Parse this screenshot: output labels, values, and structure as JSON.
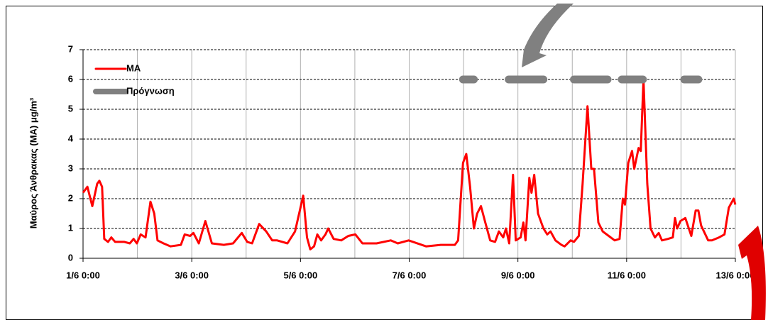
{
  "chart_data": {
    "type": "line",
    "ylabel": "Μαύρος Άνθρακας (ΜΑ) μg/m³",
    "xlim": [
      0,
      12
    ],
    "xticks": [
      {
        "value": 0,
        "label": "1/6 0:00"
      },
      {
        "value": 2,
        "label": "3/6 0:00"
      },
      {
        "value": 4,
        "label": "5/6 0:00"
      },
      {
        "value": 6,
        "label": "7/6 0:00"
      },
      {
        "value": 8,
        "label": "9/6 0:00"
      },
      {
        "value": 10,
        "label": "11/6 0:00"
      },
      {
        "value": 12,
        "label": "13/6 0:00"
      }
    ],
    "xgrid_minor": [
      1,
      3,
      5,
      7,
      9,
      11
    ],
    "ylim": [
      0,
      7
    ],
    "yticks": [
      0,
      1,
      2,
      3,
      4,
      5,
      6,
      7
    ],
    "grid": true,
    "legend": "upper left",
    "series": [
      {
        "name": "ΜΑ",
        "color": "#ff0000",
        "width": 3,
        "x": [
          0,
          0.08,
          0.17,
          0.26,
          0.3,
          0.35,
          0.39,
          0.46,
          0.52,
          0.59,
          0.76,
          0.86,
          0.93,
          0.99,
          1.06,
          1.15,
          1.24,
          1.31,
          1.37,
          1.48,
          1.61,
          1.8,
          1.87,
          1.97,
          2.03,
          2.13,
          2.25,
          2.37,
          2.59,
          2.76,
          2.92,
          3.02,
          3.11,
          3.24,
          3.37,
          3.48,
          3.57,
          3.76,
          3.9,
          4.05,
          4.12,
          4.18,
          4.25,
          4.31,
          4.38,
          4.46,
          4.51,
          4.61,
          4.75,
          4.88,
          5.01,
          5.14,
          5.4,
          5.66,
          5.79,
          5.99,
          6.31,
          6.58,
          6.84,
          6.9,
          6.99,
          7.05,
          7.12,
          7.19,
          7.25,
          7.32,
          7.4,
          7.49,
          7.58,
          7.65,
          7.73,
          7.78,
          7.84,
          7.91,
          7.96,
          8.05,
          8.1,
          8.14,
          8.21,
          8.25,
          8.3,
          8.37,
          8.47,
          8.54,
          8.6,
          8.69,
          8.8,
          8.86,
          8.97,
          9.03,
          9.12,
          9.19,
          9.28,
          9.35,
          9.4,
          9.48,
          9.56,
          9.67,
          9.78,
          9.87,
          9.93,
          9.97,
          10.03,
          10.1,
          10.14,
          10.22,
          10.26,
          10.31,
          10.38,
          10.44,
          10.52,
          10.59,
          10.65,
          10.76,
          10.85,
          10.89,
          10.93,
          10.99,
          11.08,
          11.19,
          11.27,
          11.32,
          11.37,
          11.5,
          11.57,
          11.7,
          11.8,
          11.88,
          11.97,
          12
        ],
        "values": [
          2.2,
          2.4,
          1.75,
          2.5,
          2.6,
          2.4,
          0.65,
          0.55,
          0.7,
          0.55,
          0.55,
          0.5,
          0.65,
          0.5,
          0.8,
          0.7,
          1.9,
          1.5,
          0.6,
          0.5,
          0.4,
          0.45,
          0.8,
          0.75,
          0.85,
          0.5,
          1.25,
          0.5,
          0.45,
          0.5,
          0.85,
          0.55,
          0.5,
          1.15,
          0.9,
          0.6,
          0.6,
          0.5,
          0.9,
          2.1,
          0.7,
          0.3,
          0.4,
          0.8,
          0.6,
          0.8,
          1.0,
          0.65,
          0.6,
          0.75,
          0.8,
          0.5,
          0.5,
          0.6,
          0.5,
          0.6,
          0.4,
          0.45,
          0.45,
          0.6,
          3.2,
          3.5,
          2.4,
          1.0,
          1.5,
          1.75,
          1.2,
          0.6,
          0.55,
          0.9,
          0.7,
          1.0,
          0.5,
          2.8,
          0.6,
          0.7,
          1.2,
          0.6,
          2.7,
          2.2,
          2.8,
          1.5,
          1.0,
          0.8,
          0.9,
          0.6,
          0.45,
          0.4,
          0.6,
          0.55,
          0.75,
          2.5,
          5.1,
          3.0,
          3.0,
          1.2,
          0.9,
          0.75,
          0.6,
          0.65,
          2.0,
          1.8,
          3.2,
          3.6,
          3.0,
          3.7,
          3.6,
          6.0,
          2.5,
          1.0,
          0.7,
          0.85,
          0.6,
          0.65,
          0.7,
          1.35,
          1.0,
          1.25,
          1.35,
          0.75,
          1.6,
          1.6,
          1.1,
          0.6,
          0.6,
          0.7,
          0.8,
          1.7,
          2.0,
          1.8
        ]
      },
      {
        "name": "Πρόγνωση",
        "color": "#808080",
        "width": 11,
        "x": [
          6.99,
          7.19,
          7.2,
          7.83,
          8.47,
          8.48,
          9.03,
          9.65,
          9.66,
          9.91,
          10.3,
          10.31,
          11.06,
          11.32
        ],
        "values": [
          6,
          6,
          null,
          6,
          6,
          null,
          6,
          6,
          null,
          6,
          6,
          null,
          6,
          6
        ]
      }
    ]
  }
}
